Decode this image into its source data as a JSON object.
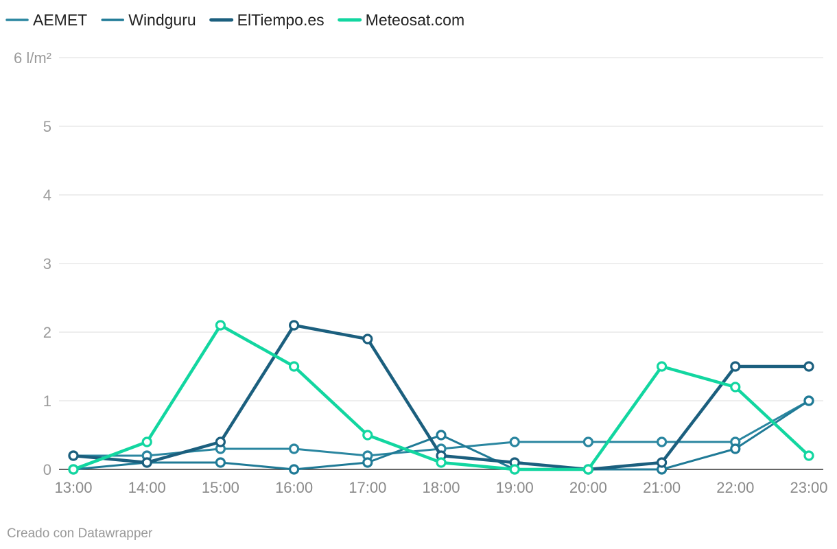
{
  "chart_data": {
    "type": "line",
    "x": [
      "13:00",
      "14:00",
      "15:00",
      "16:00",
      "17:00",
      "18:00",
      "19:00",
      "20:00",
      "21:00",
      "22:00",
      "23:00"
    ],
    "ylim": [
      0,
      6
    ],
    "yticks": [
      "0",
      "1",
      "2",
      "3",
      "4",
      "5",
      "6 l/m²"
    ],
    "grid": true,
    "legend": "top-left",
    "series": [
      {
        "name": "AEMET",
        "color": "#2a86a0",
        "stroke_width": 3,
        "values": [
          0.2,
          0.2,
          0.3,
          0.3,
          0.2,
          0.3,
          0.4,
          0.4,
          0.4,
          0.4,
          1.0
        ]
      },
      {
        "name": "Windguru",
        "color": "#1f7a96",
        "stroke_width": 3,
        "values": [
          0,
          0.1,
          0.1,
          0,
          0.1,
          0.5,
          0,
          0,
          0,
          0.3,
          1.0
        ]
      },
      {
        "name": "ElTiempo.es",
        "color": "#1b5f7e",
        "stroke_width": 4.5,
        "values": [
          0.2,
          0.1,
          0.4,
          2.1,
          1.9,
          0.2,
          0.1,
          0,
          0.1,
          1.5,
          1.5
        ]
      },
      {
        "name": "Meteosat.com",
        "color": "#12d6a0",
        "stroke_width": 4.5,
        "values": [
          0,
          0.4,
          2.1,
          1.5,
          0.5,
          0.1,
          0,
          0,
          1.5,
          1.2,
          0.2
        ]
      }
    ]
  },
  "footer": {
    "credit": "Creado con Datawrapper"
  }
}
